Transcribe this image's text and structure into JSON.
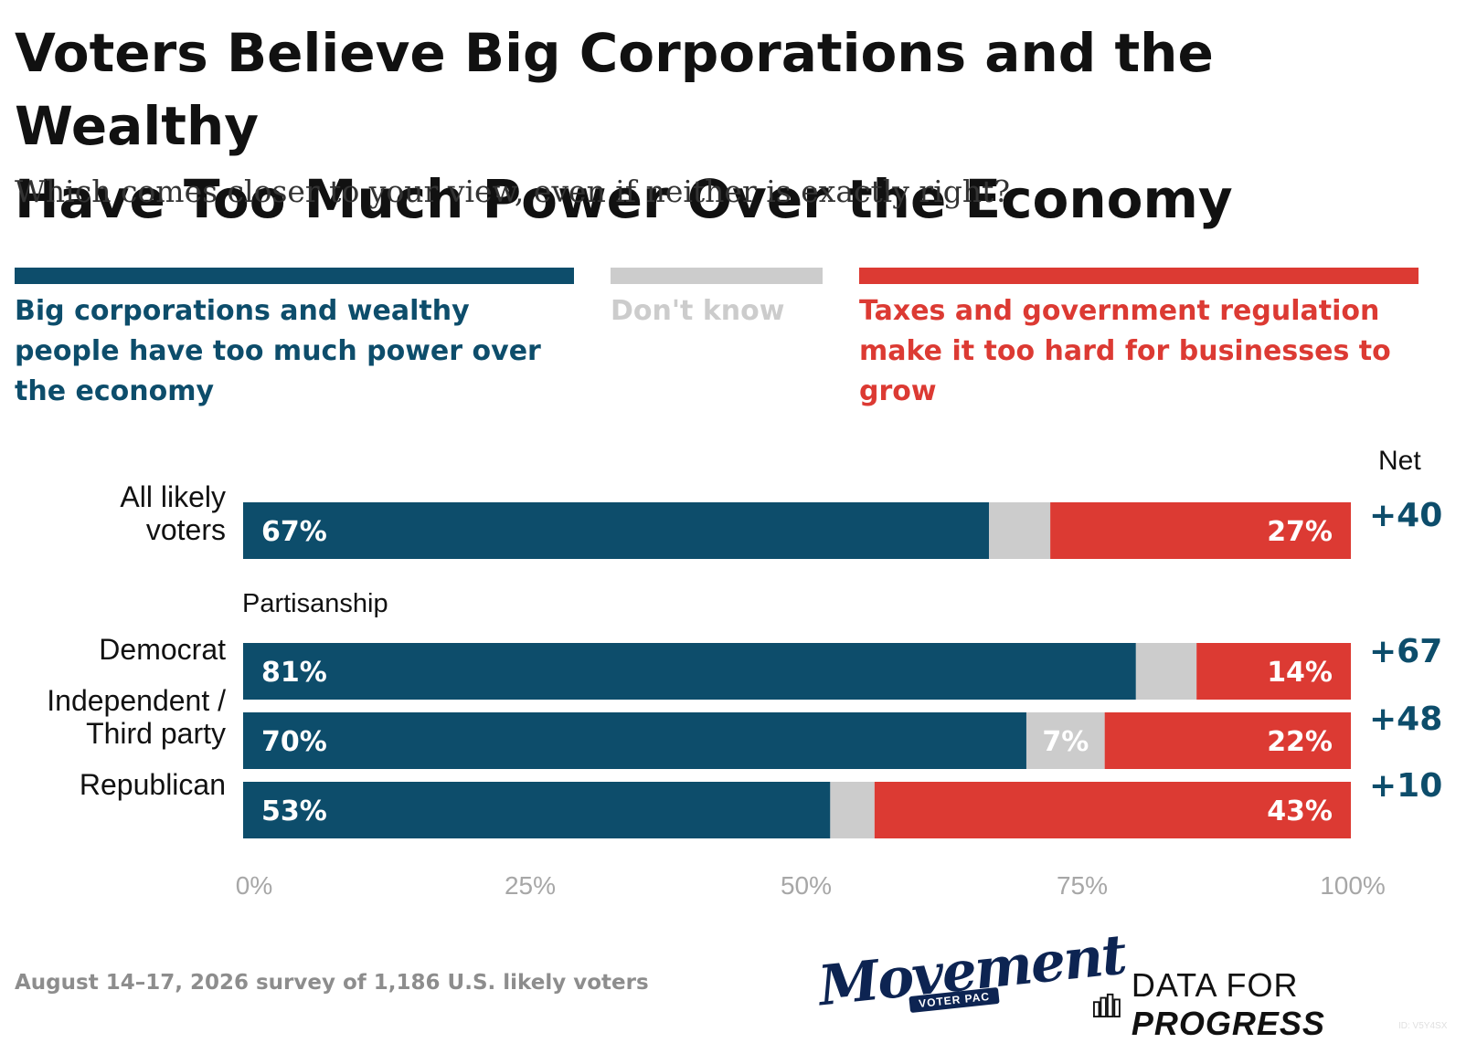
{
  "title_line1": "Voters Believe Big Corporations and the Wealthy",
  "title_line2": "Have Too Much Power Over the Economy",
  "subtitle": "Which comes closer to your view, even if neither is exactly right?",
  "colors": {
    "corporations": "#0d4d6b",
    "dont_know": "#cccccc",
    "taxes": "#dc3a33"
  },
  "legend": [
    {
      "key": "corporations",
      "text": "Big corporations and wealthy people have too much power over the economy"
    },
    {
      "key": "dont_know",
      "text": "Don't know"
    },
    {
      "key": "taxes",
      "text": "Taxes and government regulation make it too hard for businesses to grow"
    }
  ],
  "net_header": "Net",
  "section_label": "Partisanship",
  "row_labels": {
    "all": [
      "All likely",
      "voters"
    ],
    "dem": "Democrat",
    "ind": [
      "Independent /",
      "Third party"
    ],
    "rep": "Republican"
  },
  "chart_data": {
    "type": "bar",
    "orientation": "horizontal",
    "stacked": true,
    "categories": [
      "All likely voters",
      "Democrat",
      "Independent / Third party",
      "Republican"
    ],
    "series": [
      {
        "name": "Big corporations and wealthy people have too much power over the economy",
        "values": [
          67,
          81,
          70,
          53
        ],
        "labels": [
          "67%",
          "81%",
          "70%",
          "53%"
        ]
      },
      {
        "name": "Don't know",
        "values": [
          5.5,
          5.5,
          7,
          4
        ],
        "labels": [
          "",
          "",
          "7%",
          ""
        ]
      },
      {
        "name": "Taxes and government regulation make it too hard for businesses to grow",
        "values": [
          27,
          14,
          22,
          43
        ],
        "labels": [
          "27%",
          "14%",
          "22%",
          "43%"
        ]
      }
    ],
    "net": [
      "+40",
      "+67",
      "+48",
      "+10"
    ],
    "xlim": [
      0,
      100
    ],
    "xticks": [
      "0%",
      "25%",
      "50%",
      "75%",
      "100%"
    ],
    "grid": false
  },
  "footnote": "August 14–17, 2026 survey of 1,186 U.S. likely voters",
  "logos": {
    "movement_word": "Movement",
    "movement_sub": "VOTER PAC",
    "dfp_light": "DATA FOR ",
    "dfp_bold": "PROGRESS"
  },
  "id_tag": "ID: V5Y4SX"
}
